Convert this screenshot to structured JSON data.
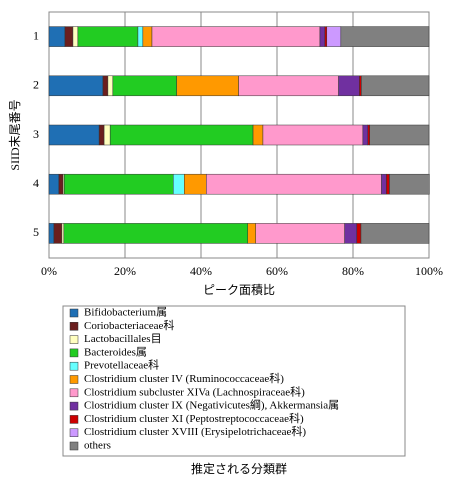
{
  "chart_data": {
    "type": "stacked-barh",
    "xlabel": "ピーク面積比",
    "ylabel": "SIID末尾番号",
    "legend_title": "推定される分類群",
    "categories": [
      "1",
      "2",
      "3",
      "4",
      "5"
    ],
    "xlim": [
      0,
      100
    ],
    "xticks": [
      {
        "value": 0,
        "label": "0%"
      },
      {
        "value": 20,
        "label": "20%"
      },
      {
        "value": 40,
        "label": "40%"
      },
      {
        "value": 60,
        "label": "60%"
      },
      {
        "value": 80,
        "label": "80%"
      },
      {
        "value": 100,
        "label": "100%"
      }
    ],
    "grid": true,
    "series": [
      {
        "name": "Bifidobacterium属",
        "color": "#1f6fb4",
        "values": [
          4.2,
          14.2,
          13.2,
          2.6,
          1.3
        ]
      },
      {
        "name": "Coriobacteriaceae科",
        "color": "#6b1e1e",
        "values": [
          2.1,
          1.3,
          1.3,
          1.1,
          2.1
        ]
      },
      {
        "name": "Lactobacillales目",
        "color": "#ffffc0",
        "values": [
          1.3,
          1.3,
          1.6,
          0.3,
          0.5
        ]
      },
      {
        "name": "Bacteroides属",
        "color": "#22cc22",
        "values": [
          15.8,
          16.8,
          37.6,
          28.7,
          48.4
        ]
      },
      {
        "name": "Prevotellaceae科",
        "color": "#66ffff",
        "values": [
          1.3,
          0,
          0,
          2.9,
          0
        ]
      },
      {
        "name": "Clostridium cluster IV (Ruminococcaceae科)",
        "color": "#ff9900",
        "values": [
          2.4,
          16.3,
          2.6,
          5.8,
          2.1
        ]
      },
      {
        "name": "Clostridium subcluster XIVa (Lachnospiraceae科)",
        "color": "#ff99cc",
        "values": [
          44.2,
          26.3,
          26.3,
          46.1,
          23.4
        ]
      },
      {
        "name": "Clostridium cluster IX (Negativicutes綱), Akkermansia属",
        "color": "#7030a0",
        "values": [
          1.3,
          5.5,
          1.3,
          1.3,
          3.2
        ]
      },
      {
        "name": "Clostridium cluster XI (Peptostreptococcaceae科)",
        "color": "#cc0000",
        "values": [
          0.5,
          0.5,
          0.5,
          0.8,
          1.1
        ]
      },
      {
        "name": "Clostridium cluster XVIII (Erysipelotrichaceae科)",
        "color": "#cc99ff",
        "values": [
          3.7,
          0,
          0,
          0,
          0
        ]
      },
      {
        "name": "others",
        "color": "#808080",
        "values": [
          23.2,
          17.8,
          15.6,
          10.5,
          17.9
        ]
      }
    ]
  }
}
